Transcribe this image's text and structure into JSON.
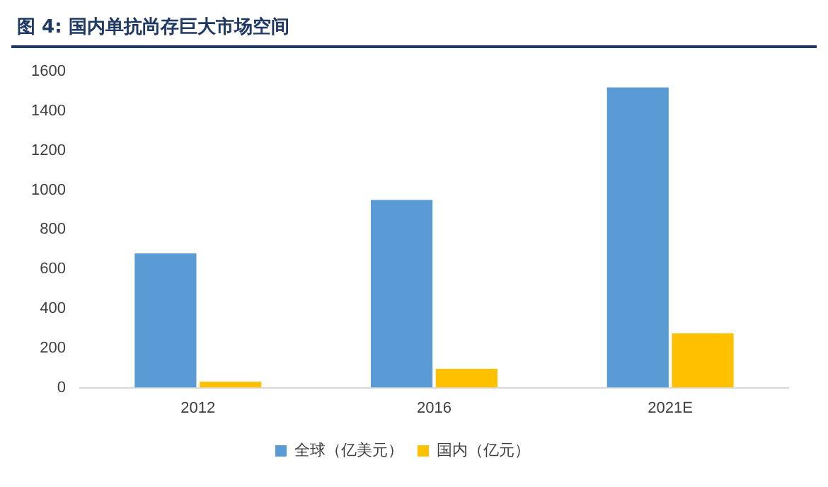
{
  "chart_data": {
    "type": "bar",
    "title": "图 4: 国内单抗尚存巨大市场空间",
    "categories": [
      "2012",
      "2016",
      "2021E"
    ],
    "series": [
      {
        "name": "全球（亿美元）",
        "color": "#5b9bd5",
        "values": [
          680,
          950,
          1520
        ]
      },
      {
        "name": "国内（亿元）",
        "color": "#ffc000",
        "values": [
          30,
          95,
          275
        ]
      }
    ],
    "ylim": [
      0,
      1600
    ],
    "yticks": [
      0,
      200,
      400,
      600,
      800,
      1000,
      1200,
      1400,
      1600
    ],
    "grid": false,
    "legend": "bottom"
  }
}
